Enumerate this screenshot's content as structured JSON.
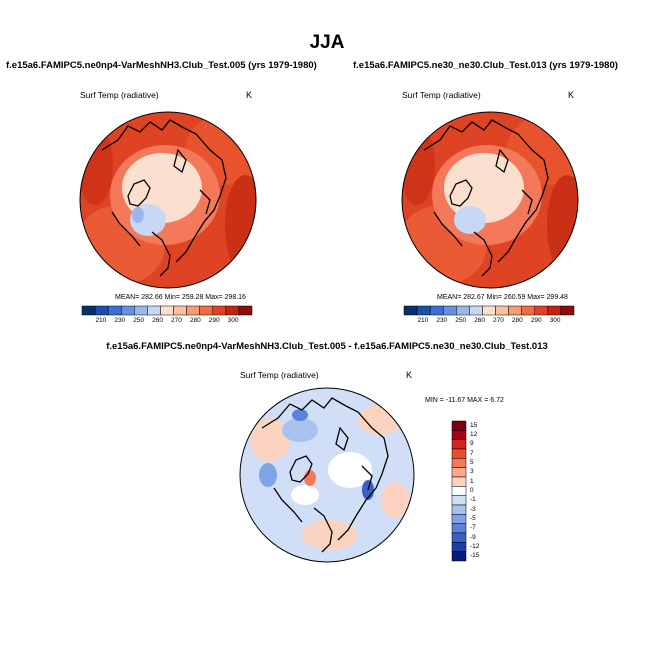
{
  "page_title": "JJA",
  "panels": [
    {
      "title": "f.e15a6.FAMIPC5.ne0np4-VarMeshNH3.Club_Test.005 (yrs 1979-1980)",
      "variable": "Surf Temp (radiative)",
      "units": "K",
      "stats": "MEAN= 282.66  Min= 259.28  Max= 298.16",
      "colorbar_ticks": [
        "210",
        "230",
        "250",
        "260",
        "270",
        "280",
        "290",
        "300"
      ]
    },
    {
      "title": "f.e15a6.FAMIPC5.ne30_ne30.Club_Test.013 (yrs 1979-1980)",
      "variable": "Surf Temp (radiative)",
      "units": "K",
      "stats": "MEAN= 282.67  Min= 260.59  Max= 299.48",
      "colorbar_ticks": [
        "210",
        "230",
        "250",
        "260",
        "270",
        "280",
        "290",
        "300"
      ]
    },
    {
      "title": "f.e15a6.FAMIPC5.ne0np4-VarMeshNH3.Club_Test.005 - f.e15a6.FAMIPC5.ne30_ne30.Club_Test.013",
      "variable": "Surf Temp (radiative)",
      "units": "K",
      "stats": "MIN = -11.67 MAX =  6.72",
      "colorbar_ticks": [
        "15",
        "12",
        "9",
        "7",
        "5",
        "3",
        "1",
        "0",
        "-1",
        "-3",
        "-5",
        "-7",
        "-9",
        "-12",
        "-15"
      ]
    }
  ],
  "colors": {
    "abs_scale": [
      "#08306b",
      "#1d4fb0",
      "#3b6fd6",
      "#6890e0",
      "#9bb6ec",
      "#c8d8f4",
      "#fbe0d0",
      "#fcbfa0",
      "#f99a72",
      "#f06c45",
      "#de4424",
      "#c22312",
      "#8e0c0c"
    ],
    "diff_scale": [
      "#7a0010",
      "#a80018",
      "#d22222",
      "#ea4a30",
      "#f4795a",
      "#f9a88c",
      "#fcd3c0",
      "#ffffff",
      "#d0dff7",
      "#a7c2ef",
      "#7ea3e6",
      "#5a82d9",
      "#3860c7",
      "#1d3ea8",
      "#061a78"
    ]
  }
}
